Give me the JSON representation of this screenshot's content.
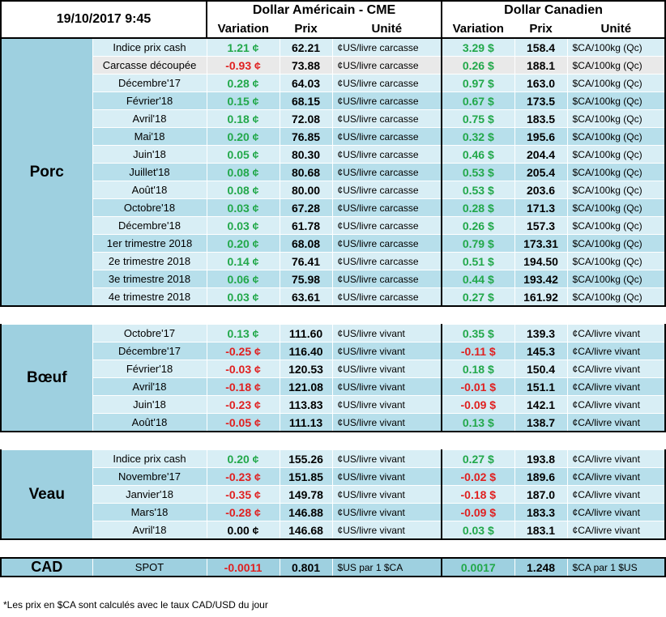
{
  "header": {
    "datetime": "19/10/2017 9:45",
    "usd_title": "Dollar Américain - CME",
    "cad_title": "Dollar Canadien",
    "col_variation": "Variation",
    "col_prix": "Prix",
    "col_unite": "Unité"
  },
  "porc": {
    "label": "Porc",
    "rows": [
      {
        "date": "Indice prix cash",
        "var1": "1.21 ¢",
        "dir1": "up",
        "prix1": "62.21",
        "unit1": "¢US/livre carcasse",
        "var2": "3.29 $",
        "dir2": "up",
        "prix2": "158.4",
        "unit2": "$CA/100kg (Qc)"
      },
      {
        "date": "Carcasse découpée",
        "var1": "-0.93 ¢",
        "dir1": "down",
        "prix1": "73.88",
        "unit1": "¢US/livre carcasse",
        "var2": "0.26 $",
        "dir2": "up",
        "prix2": "188.1",
        "unit2": "$CA/100kg (Qc)"
      },
      {
        "date": "Décembre'17",
        "var1": "0.28 ¢",
        "dir1": "up",
        "prix1": "64.03",
        "unit1": "¢US/livre carcasse",
        "var2": "0.97 $",
        "dir2": "up",
        "prix2": "163.0",
        "unit2": "$CA/100kg (Qc)"
      },
      {
        "date": "Février'18",
        "var1": "0.15 ¢",
        "dir1": "up",
        "prix1": "68.15",
        "unit1": "¢US/livre carcasse",
        "var2": "0.67 $",
        "dir2": "up",
        "prix2": "173.5",
        "unit2": "$CA/100kg (Qc)"
      },
      {
        "date": "Avril'18",
        "var1": "0.18 ¢",
        "dir1": "up",
        "prix1": "72.08",
        "unit1": "¢US/livre carcasse",
        "var2": "0.75 $",
        "dir2": "up",
        "prix2": "183.5",
        "unit2": "$CA/100kg (Qc)"
      },
      {
        "date": "Mai'18",
        "var1": "0.20 ¢",
        "dir1": "up",
        "prix1": "76.85",
        "unit1": "¢US/livre carcasse",
        "var2": "0.32 $",
        "dir2": "up",
        "prix2": "195.6",
        "unit2": "$CA/100kg (Qc)"
      },
      {
        "date": "Juin'18",
        "var1": "0.05 ¢",
        "dir1": "up",
        "prix1": "80.30",
        "unit1": "¢US/livre carcasse",
        "var2": "0.46 $",
        "dir2": "up",
        "prix2": "204.4",
        "unit2": "$CA/100kg (Qc)"
      },
      {
        "date": "Juillet'18",
        "var1": "0.08 ¢",
        "dir1": "up",
        "prix1": "80.68",
        "unit1": "¢US/livre carcasse",
        "var2": "0.53 $",
        "dir2": "up",
        "prix2": "205.4",
        "unit2": "$CA/100kg (Qc)"
      },
      {
        "date": "Août'18",
        "var1": "0.08 ¢",
        "dir1": "up",
        "prix1": "80.00",
        "unit1": "¢US/livre carcasse",
        "var2": "0.53 $",
        "dir2": "up",
        "prix2": "203.6",
        "unit2": "$CA/100kg (Qc)"
      },
      {
        "date": "Octobre'18",
        "var1": "0.03 ¢",
        "dir1": "up",
        "prix1": "67.28",
        "unit1": "¢US/livre carcasse",
        "var2": "0.28 $",
        "dir2": "up",
        "prix2": "171.3",
        "unit2": "$CA/100kg (Qc)"
      },
      {
        "date": "Décembre'18",
        "var1": "0.03 ¢",
        "dir1": "up",
        "prix1": "61.78",
        "unit1": "¢US/livre carcasse",
        "var2": "0.26 $",
        "dir2": "up",
        "prix2": "157.3",
        "unit2": "$CA/100kg (Qc)"
      },
      {
        "date": "1er trimestre 2018",
        "var1": "0.20 ¢",
        "dir1": "up",
        "prix1": "68.08",
        "unit1": "¢US/livre carcasse",
        "var2": "0.79 $",
        "dir2": "up",
        "prix2": "173.31",
        "unit2": "$CA/100kg (Qc)"
      },
      {
        "date": "2e trimestre 2018",
        "var1": "0.14 ¢",
        "dir1": "up",
        "prix1": "76.41",
        "unit1": "¢US/livre carcasse",
        "var2": "0.51 $",
        "dir2": "up",
        "prix2": "194.50",
        "unit2": "$CA/100kg (Qc)"
      },
      {
        "date": "3e trimestre 2018",
        "var1": "0.06 ¢",
        "dir1": "up",
        "prix1": "75.98",
        "unit1": "¢US/livre carcasse",
        "var2": "0.44 $",
        "dir2": "up",
        "prix2": "193.42",
        "unit2": "$CA/100kg (Qc)"
      },
      {
        "date": "4e trimestre 2018",
        "var1": "0.03 ¢",
        "dir1": "up",
        "prix1": "63.61",
        "unit1": "¢US/livre carcasse",
        "var2": "0.27 $",
        "dir2": "up",
        "prix2": "161.92",
        "unit2": "$CA/100kg (Qc)"
      }
    ]
  },
  "boeuf": {
    "label": "Bœuf",
    "rows": [
      {
        "date": "Octobre'17",
        "var1": "0.13 ¢",
        "dir1": "up",
        "prix1": "111.60",
        "unit1": "¢US/livre vivant",
        "var2": "0.35 $",
        "dir2": "up",
        "prix2": "139.3",
        "unit2": "¢CA/livre vivant"
      },
      {
        "date": "Décembre'17",
        "var1": "-0.25 ¢",
        "dir1": "down",
        "prix1": "116.40",
        "unit1": "¢US/livre vivant",
        "var2": "-0.11 $",
        "dir2": "down",
        "prix2": "145.3",
        "unit2": "¢CA/livre vivant"
      },
      {
        "date": "Février'18",
        "var1": "-0.03 ¢",
        "dir1": "down",
        "prix1": "120.53",
        "unit1": "¢US/livre vivant",
        "var2": "0.18 $",
        "dir2": "up",
        "prix2": "150.4",
        "unit2": "¢CA/livre vivant"
      },
      {
        "date": "Avril'18",
        "var1": "-0.18 ¢",
        "dir1": "down",
        "prix1": "121.08",
        "unit1": "¢US/livre vivant",
        "var2": "-0.01 $",
        "dir2": "down",
        "prix2": "151.1",
        "unit2": "¢CA/livre vivant"
      },
      {
        "date": "Juin'18",
        "var1": "-0.23 ¢",
        "dir1": "down",
        "prix1": "113.83",
        "unit1": "¢US/livre vivant",
        "var2": "-0.09 $",
        "dir2": "down",
        "prix2": "142.1",
        "unit2": "¢CA/livre vivant"
      },
      {
        "date": "Août'18",
        "var1": "-0.05 ¢",
        "dir1": "down",
        "prix1": "111.13",
        "unit1": "¢US/livre vivant",
        "var2": "0.13 $",
        "dir2": "up",
        "prix2": "138.7",
        "unit2": "¢CA/livre vivant"
      }
    ]
  },
  "veau": {
    "label": "Veau",
    "rows": [
      {
        "date": "Indice prix cash",
        "var1": "0.20 ¢",
        "dir1": "up",
        "prix1": "155.26",
        "unit1": "¢US/livre vivant",
        "var2": "0.27 $",
        "dir2": "up",
        "prix2": "193.8",
        "unit2": "¢CA/livre vivant"
      },
      {
        "date": "Novembre'17",
        "var1": "-0.23 ¢",
        "dir1": "down",
        "prix1": "151.85",
        "unit1": "¢US/livre vivant",
        "var2": "-0.02 $",
        "dir2": "down",
        "prix2": "189.6",
        "unit2": "¢CA/livre vivant"
      },
      {
        "date": "Janvier'18",
        "var1": "-0.35 ¢",
        "dir1": "down",
        "prix1": "149.78",
        "unit1": "¢US/livre vivant",
        "var2": "-0.18 $",
        "dir2": "down",
        "prix2": "187.0",
        "unit2": "¢CA/livre vivant"
      },
      {
        "date": "Mars'18",
        "var1": "-0.28 ¢",
        "dir1": "down",
        "prix1": "146.88",
        "unit1": "¢US/livre vivant",
        "var2": "-0.09 $",
        "dir2": "down",
        "prix2": "183.3",
        "unit2": "¢CA/livre vivant"
      },
      {
        "date": "Avril'18",
        "var1": "0.00 ¢",
        "dir1": "flat",
        "prix1": "146.68",
        "unit1": "¢US/livre vivant",
        "var2": "0.03 $",
        "dir2": "up",
        "prix2": "183.1",
        "unit2": "¢CA/livre vivant"
      }
    ]
  },
  "cad": {
    "label": "CAD",
    "date": "SPOT",
    "var1": "-0.0011",
    "dir1": "down",
    "prix1": "0.801",
    "unit1": "$US par 1 $CA",
    "var2": "0.0017",
    "dir2": "up",
    "prix2": "1.248",
    "unit2": "$CA par 1 $US"
  },
  "footnote": "*Les  prix en $CA sont calculés avec le taux CAD/USD du jour",
  "colors": {
    "group_bg": "#9ed0e0",
    "row_light": "#d8eef5",
    "row_dark": "#b7dfeb",
    "up": "#22a84a",
    "down": "#e02020"
  }
}
